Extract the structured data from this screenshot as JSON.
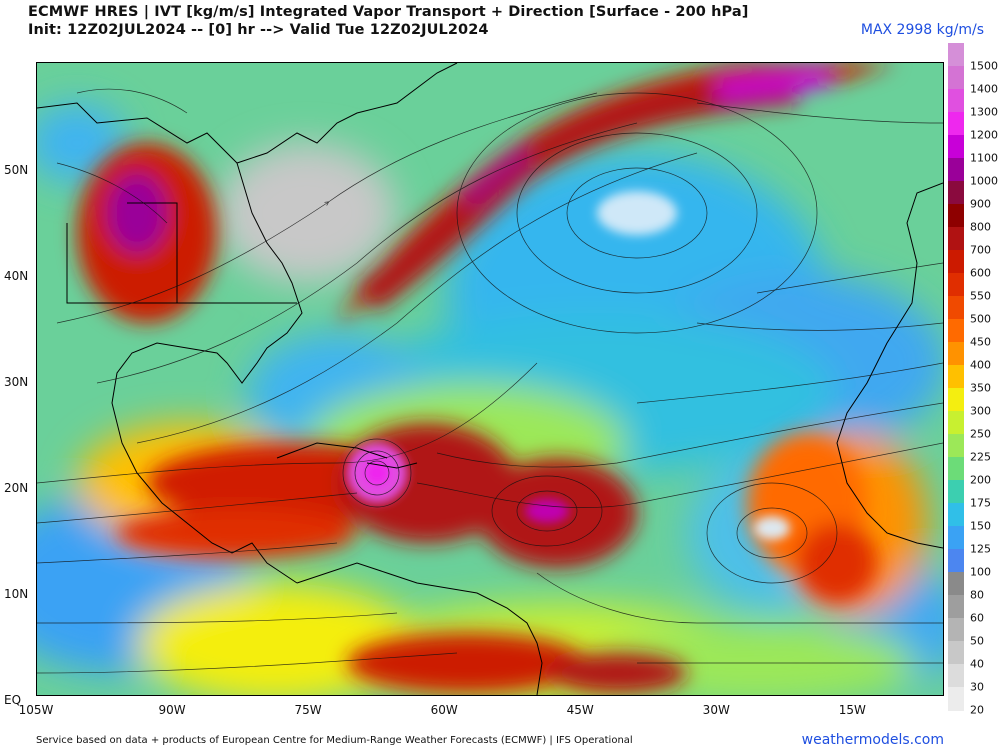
{
  "header": {
    "title_line1": "ECMWF HRES | IVT [kg/m/s] Integrated Vapor Transport + Direction [Surface - 200 hPa]",
    "title_line2": "Init: 12Z02JUL2024 -- [0] hr --> Valid Tue 12Z02JUL2024",
    "max_label": "MAX 2998 kg/m/s"
  },
  "map": {
    "lat_labels": [
      {
        "text": "50N",
        "lat": 50
      },
      {
        "text": "40N",
        "lat": 40
      },
      {
        "text": "30N",
        "lat": 30
      },
      {
        "text": "20N",
        "lat": 20
      },
      {
        "text": "10N",
        "lat": 10
      },
      {
        "text": "EQ",
        "lat": 0
      }
    ],
    "lon_labels": [
      {
        "text": "105W",
        "lon": -105
      },
      {
        "text": "90W",
        "lon": -90
      },
      {
        "text": "75W",
        "lon": -75
      },
      {
        "text": "60W",
        "lon": -60
      },
      {
        "text": "45W",
        "lon": -45
      },
      {
        "text": "30W",
        "lon": -30
      },
      {
        "text": "15W",
        "lon": -15
      }
    ],
    "features": [
      {
        "name": "atmospheric-river-north-atlantic",
        "color": "#c21800"
      },
      {
        "name": "hurricane-core-caribbean",
        "color": "#e000e0"
      },
      {
        "name": "tropical-wave-atlantic",
        "color": "#c000b0"
      },
      {
        "name": "high-pressure-subtropical",
        "color": "#7fd4ff"
      }
    ]
  },
  "colorbar": {
    "levels": [
      {
        "label": "1500",
        "color": "#d58fd8"
      },
      {
        "label": "1400",
        "color": "#d473d4"
      },
      {
        "label": "1300",
        "color": "#e050e0"
      },
      {
        "label": "1200",
        "color": "#ee28ee"
      },
      {
        "label": "1100",
        "color": "#c800d8"
      },
      {
        "label": "1000",
        "color": "#9a0099"
      },
      {
        "label": "900",
        "color": "#8a0a3e"
      },
      {
        "label": "800",
        "color": "#8e0000"
      },
      {
        "label": "700",
        "color": "#b01212"
      },
      {
        "label": "600",
        "color": "#cc1a00"
      },
      {
        "label": "550",
        "color": "#e02e00"
      },
      {
        "label": "500",
        "color": "#f04a00"
      },
      {
        "label": "450",
        "color": "#ff6a00"
      },
      {
        "label": "400",
        "color": "#ff9200"
      },
      {
        "label": "350",
        "color": "#ffc000"
      },
      {
        "label": "300",
        "color": "#f4ee10"
      },
      {
        "label": "250",
        "color": "#c8f030"
      },
      {
        "label": "225",
        "color": "#9ce858"
      },
      {
        "label": "200",
        "color": "#6cdc78"
      },
      {
        "label": "175",
        "color": "#3ccfb0"
      },
      {
        "label": "150",
        "color": "#30bfe8"
      },
      {
        "label": "125",
        "color": "#3aa2f4"
      },
      {
        "label": "100",
        "color": "#4c86f0"
      },
      {
        "label": "80",
        "color": "#8a8a8a"
      },
      {
        "label": "60",
        "color": "#9e9e9e"
      },
      {
        "label": "50",
        "color": "#b4b4b4"
      },
      {
        "label": "40",
        "color": "#c8c8c8"
      },
      {
        "label": "30",
        "color": "#dcdcdc"
      },
      {
        "label": "20",
        "color": "#ececec"
      }
    ]
  },
  "footer": {
    "credit": "Service based on data + products of European Centre for Medium-Range Weather Forecasts (ECMWF) | IFS Operational",
    "brand": "weathermodels.com"
  }
}
